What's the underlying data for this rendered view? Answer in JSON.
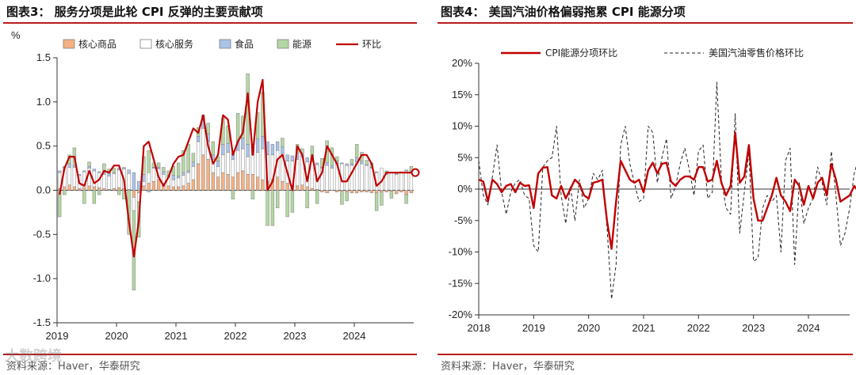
{
  "left": {
    "title": "图表3：  服务分项是此轮 CPI 反弹的主要贡献项",
    "source": "资料来源：Haver，华泰研究",
    "chart_data": {
      "type": "bar",
      "stacked": true,
      "unit_label": "%",
      "ylim": [
        -1.5,
        1.5
      ],
      "yticks": [
        -1.5,
        -1.0,
        -0.5,
        0.0,
        0.5,
        1.0,
        1.5
      ],
      "ytick_labels": [
        "-1.5",
        "-1.0",
        "-0.5",
        "0.0",
        "0.5",
        "1.0",
        "1.5"
      ],
      "xtick_labels": [
        "2019",
        "2020",
        "2021",
        "2022",
        "2023",
        "2024"
      ],
      "legend_position": "top",
      "start": "2019-01",
      "series": [
        {
          "name": "核心商品",
          "color": "#f4b183",
          "values": [
            0.02,
            0.04,
            0.06,
            0.04,
            0.02,
            0.03,
            0.05,
            0.04,
            0.03,
            0.02,
            0.01,
            0.02,
            0.03,
            0.02,
            0.01,
            -0.08,
            -0.03,
            0.05,
            0.08,
            0.1,
            0.12,
            0.08,
            0.05,
            0.04,
            0.04,
            0.05,
            0.08,
            0.12,
            0.3,
            0.4,
            0.35,
            0.2,
            0.15,
            0.2,
            0.18,
            0.15,
            0.2,
            0.22,
            0.18,
            0.18,
            0.15,
            0.12,
            0.1,
            0.12,
            0.15,
            0.1,
            0.08,
            0.05,
            0.05,
            0.06,
            0.04,
            0.02,
            0.01,
            -0.02,
            -0.03,
            0.0,
            -0.02,
            -0.01,
            -0.02,
            -0.03,
            -0.03,
            -0.02,
            -0.02,
            -0.03,
            -0.03,
            -0.02,
            -0.02,
            -0.01,
            -0.04,
            -0.02,
            -0.05,
            -0.03
          ]
        },
        {
          "name": "核心服务",
          "color": "#ffffff",
          "values": [
            0.18,
            0.22,
            0.2,
            0.22,
            0.15,
            0.18,
            0.2,
            0.18,
            0.17,
            0.16,
            0.15,
            0.17,
            0.2,
            0.22,
            0.18,
            -0.15,
            -0.1,
            0.05,
            0.12,
            0.15,
            0.12,
            0.1,
            0.1,
            0.08,
            0.1,
            0.12,
            0.12,
            0.15,
            0.25,
            0.3,
            0.2,
            0.15,
            0.12,
            0.2,
            0.25,
            0.2,
            0.25,
            0.25,
            0.2,
            0.22,
            0.28,
            0.35,
            0.3,
            0.28,
            0.3,
            0.3,
            0.25,
            0.28,
            0.3,
            0.32,
            0.28,
            0.3,
            0.28,
            0.25,
            0.28,
            0.25,
            0.3,
            0.3,
            0.28,
            0.28,
            0.32,
            0.3,
            0.28,
            0.25,
            0.2,
            0.25,
            0.18,
            0.2,
            0.18,
            0.2,
            0.22,
            0.2
          ]
        },
        {
          "name": "食品",
          "color": "#a9c4e8",
          "values": [
            0.02,
            0.01,
            0.04,
            0.02,
            0.01,
            0.01,
            0.02,
            0.02,
            0.01,
            0.02,
            0.03,
            0.01,
            0.02,
            0.02,
            0.04,
            0.2,
            0.1,
            0.08,
            -0.02,
            0.01,
            0.02,
            0.03,
            0.02,
            0.05,
            0.02,
            0.03,
            0.02,
            0.05,
            0.06,
            0.1,
            0.09,
            0.05,
            0.06,
            0.12,
            0.1,
            0.07,
            0.12,
            0.12,
            0.14,
            0.12,
            0.15,
            0.14,
            0.15,
            0.12,
            0.1,
            0.09,
            0.07,
            0.06,
            0.07,
            0.04,
            0.05,
            0.03,
            0.02,
            0.01,
            0.03,
            0.03,
            0.03,
            0.01,
            0.02,
            0.02,
            0.05,
            0.03,
            0.01,
            0.01,
            0.01,
            0.0,
            0.02,
            0.0,
            0.01,
            0.01,
            0.01,
            0.02
          ]
        },
        {
          "name": "能源",
          "color": "#b4d7a3",
          "values": [
            -0.3,
            -0.05,
            0.1,
            0.2,
            0.0,
            -0.15,
            0.05,
            -0.15,
            -0.05,
            0.1,
            0.05,
            0.05,
            -0.05,
            -0.1,
            -0.5,
            -0.9,
            -0.4,
            0.2,
            0.25,
            0.05,
            0.05,
            0.05,
            0.05,
            0.1,
            0.15,
            0.25,
            0.3,
            0.1,
            0.1,
            0.05,
            0.12,
            0.15,
            0.05,
            0.3,
            0.2,
            -0.1,
            0.3,
            0.25,
            0.8,
            -0.1,
            0.3,
            0.5,
            -0.4,
            -0.4,
            -0.2,
            0.1,
            -0.3,
            -0.25,
            0.1,
            0.05,
            -0.2,
            0.15,
            -0.15,
            0.1,
            0.25,
            0.2,
            0.05,
            -0.15,
            -0.1,
            0.05,
            0.15,
            0.1,
            0.05,
            0.05,
            -0.2,
            -0.15,
            0.02,
            -0.08,
            0.0,
            0.0,
            -0.1,
            0.05
          ]
        },
        {
          "name": "环比",
          "color": "#c00000",
          "values": [
            -0.05,
            0.25,
            0.38,
            0.38,
            0.08,
            0.05,
            0.22,
            0.08,
            0.12,
            0.22,
            0.2,
            0.28,
            0.28,
            0.12,
            -0.35,
            -0.75,
            -0.35,
            0.5,
            0.55,
            0.35,
            0.15,
            0.05,
            0.15,
            0.3,
            0.38,
            0.4,
            0.55,
            0.7,
            0.65,
            0.85,
            0.5,
            0.3,
            0.4,
            0.85,
            0.8,
            0.4,
            0.55,
            0.65,
            1.1,
            0.4,
            1.0,
            1.25,
            0.0,
            0.1,
            0.35,
            0.4,
            0.2,
            0.0,
            0.5,
            0.4,
            0.1,
            0.4,
            0.1,
            0.2,
            0.5,
            0.4,
            0.3,
            0.1,
            0.1,
            0.2,
            0.3,
            0.4,
            0.4,
            0.3,
            0.05,
            0.1,
            0.2,
            0.2,
            0.2,
            0.2,
            0.2,
            0.2
          ]
        }
      ]
    }
  },
  "right": {
    "title": "图表4：  美国汽油价格偏弱拖累 CPI 能源分项",
    "source": "资料来源：Haver，华泰研究",
    "chart_data": {
      "type": "line",
      "ylim": [
        -20,
        20
      ],
      "yticks": [
        -20,
        -15,
        -10,
        -5,
        0,
        5,
        10,
        15,
        20
      ],
      "ytick_labels": [
        "-20%",
        "-15%",
        "-10%",
        "-5%",
        "0%",
        "5%",
        "10%",
        "15%",
        "20%"
      ],
      "xtick_labels": [
        "2018",
        "2019",
        "2020",
        "2021",
        "2022",
        "2023",
        "2024"
      ],
      "legend_position": "top",
      "start": "2018-01",
      "series": [
        {
          "name": "CPI能源分项环比",
          "color": "#c00000",
          "style": "solid",
          "values": [
            1.5,
            1.2,
            -2.0,
            1.5,
            0.8,
            -0.5,
            0.5,
            0.8,
            -0.5,
            1.0,
            0.5,
            0.6,
            -3.0,
            2.5,
            3.4,
            3.5,
            -1.0,
            -1.5,
            0.5,
            -1.5,
            0.0,
            1.5,
            0.8,
            -1.0,
            -1.5,
            1.0,
            1.2,
            1.5,
            -5.0,
            -9.5,
            -2.0,
            4.5,
            3.0,
            1.5,
            1.0,
            1.5,
            -0.5,
            3.0,
            4.2,
            2.5,
            4.0,
            4.2,
            1.2,
            0.5,
            1.5,
            2.0,
            2.0,
            1.5,
            3.5,
            3.5,
            1.2,
            1.5,
            4.5,
            1.0,
            -1.0,
            0.5,
            9.0,
            1.0,
            2.0,
            7.0,
            -1.5,
            -5.0,
            -5.0,
            -3.0,
            -1.0,
            1.8,
            -1.0,
            -2.0,
            -3.5,
            1.5,
            0.5,
            -2.5,
            0.5,
            -1.5,
            1.0,
            1.8,
            -1.0,
            4.0,
            1.5,
            -2.0,
            -1.5,
            -1.0,
            0.5,
            -0.5,
            2.0,
            1.0,
            0.5,
            -1.5
          ]
        },
        {
          "name": "美国汽油零售价格环比",
          "color": "#222222",
          "style": "dashed",
          "values": [
            4.5,
            -1.0,
            -2.5,
            2.0,
            7.0,
            -0.5,
            -4.0,
            -0.5,
            1.0,
            1.5,
            -1.0,
            -1.5,
            -9.0,
            -10.0,
            3.5,
            4.5,
            5.0,
            10.0,
            -1.0,
            -5.5,
            0.5,
            -5.0,
            1.5,
            -3.0,
            -1.5,
            2.5,
            1.5,
            3.0,
            -6.0,
            -17.5,
            -12.0,
            7.0,
            10.0,
            4.0,
            1.0,
            -2.0,
            -1.5,
            10.0,
            9.0,
            1.0,
            5.0,
            8.0,
            -1.5,
            0.5,
            4.0,
            6.5,
            3.0,
            -1.0,
            6.0,
            7.0,
            -1.5,
            -0.5,
            17.0,
            1.5,
            -3.0,
            -4.0,
            12.0,
            -7.0,
            -0.5,
            6.0,
            -11.5,
            -11.0,
            -3.0,
            -1.0,
            -2.0,
            -1.0,
            -10.0,
            4.5,
            6.5,
            -12.0,
            1.0,
            -5.5,
            -3.0,
            -1.5,
            3.5,
            1.0,
            -2.5,
            6.0,
            -1.0,
            -9.0,
            -7.0,
            -3.0,
            2.5,
            5.0,
            8.0,
            -3.0,
            -1.0,
            -2.0
          ]
        }
      ]
    }
  }
}
